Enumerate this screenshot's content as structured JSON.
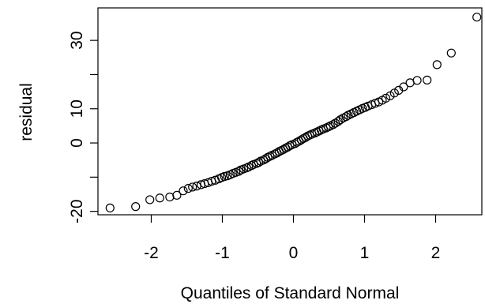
{
  "chart_data": {
    "type": "scatter",
    "title": "",
    "xlabel": "Quantiles of Standard Normal",
    "ylabel": "residual",
    "xlim": [
      -2.75,
      2.65
    ],
    "ylim": [
      -21,
      39.5
    ],
    "xticks": [
      -2,
      -1,
      0,
      1,
      2
    ],
    "xtick_labels": [
      "-2",
      "-1",
      "0",
      "1",
      "2"
    ],
    "yticks": [
      -20,
      -10,
      0,
      10,
      20,
      30
    ],
    "ytick_labels": [
      "-20",
      "0",
      "10",
      "30"
    ],
    "ytick_labels_at": [
      -20,
      0,
      10,
      30
    ],
    "grid": false,
    "marker": "open-circle",
    "series": [
      {
        "points": [
          [
            -2.58,
            -19
          ],
          [
            -2.22,
            -18.6
          ],
          [
            -2.02,
            -16.6
          ],
          [
            -1.88,
            -16.1
          ],
          [
            -1.74,
            -15.8
          ],
          [
            -1.64,
            -15.3
          ],
          [
            -1.55,
            -14
          ],
          [
            -1.48,
            -13.3
          ],
          [
            -1.42,
            -12.9
          ],
          [
            -1.36,
            -12.6
          ],
          [
            -1.3,
            -12.2
          ],
          [
            -1.25,
            -11.9
          ],
          [
            -1.2,
            -11.6
          ],
          [
            -1.15,
            -11.2
          ],
          [
            -1.1,
            -10.9
          ],
          [
            -1.05,
            -10.5
          ],
          [
            -1.01,
            -10.1
          ],
          [
            -0.97,
            -9.8
          ],
          [
            -0.93,
            -9.6
          ],
          [
            -0.89,
            -9.3
          ],
          [
            -0.85,
            -8.9
          ],
          [
            -0.81,
            -8.6
          ],
          [
            -0.77,
            -8.3
          ],
          [
            -0.74,
            -7.9
          ],
          [
            -0.7,
            -7.6
          ],
          [
            -0.66,
            -7.3
          ],
          [
            -0.63,
            -7.0
          ],
          [
            -0.59,
            -6.6
          ],
          [
            -0.56,
            -6.3
          ],
          [
            -0.52,
            -6.0
          ],
          [
            -0.49,
            -5.7
          ],
          [
            -0.46,
            -5.3
          ],
          [
            -0.42,
            -5.0
          ],
          [
            -0.39,
            -4.6
          ],
          [
            -0.36,
            -4.2
          ],
          [
            -0.33,
            -3.9
          ],
          [
            -0.3,
            -3.6
          ],
          [
            -0.26,
            -3.2
          ],
          [
            -0.23,
            -2.9
          ],
          [
            -0.2,
            -2.5
          ],
          [
            -0.17,
            -2.2
          ],
          [
            -0.14,
            -1.9
          ],
          [
            -0.11,
            -1.5
          ],
          [
            -0.08,
            -1.2
          ],
          [
            -0.05,
            -0.8
          ],
          [
            -0.02,
            -0.5
          ],
          [
            0.02,
            -0.2
          ],
          [
            0.05,
            0.2
          ],
          [
            0.08,
            0.5
          ],
          [
            0.11,
            0.9
          ],
          [
            0.14,
            1.3
          ],
          [
            0.17,
            1.6
          ],
          [
            0.2,
            2.0
          ],
          [
            0.23,
            2.3
          ],
          [
            0.26,
            2.6
          ],
          [
            0.3,
            2.9
          ],
          [
            0.33,
            3.2
          ],
          [
            0.36,
            3.5
          ],
          [
            0.39,
            3.8
          ],
          [
            0.42,
            4.1
          ],
          [
            0.46,
            4.4
          ],
          [
            0.49,
            4.7
          ],
          [
            0.52,
            5.0
          ],
          [
            0.56,
            5.4
          ],
          [
            0.59,
            5.8
          ],
          [
            0.63,
            6.3
          ],
          [
            0.66,
            6.8
          ],
          [
            0.7,
            7.3
          ],
          [
            0.74,
            7.7
          ],
          [
            0.77,
            8.1
          ],
          [
            0.81,
            8.5
          ],
          [
            0.85,
            8.9
          ],
          [
            0.89,
            9.3
          ],
          [
            0.93,
            9.7
          ],
          [
            0.97,
            10.1
          ],
          [
            1.01,
            10.4
          ],
          [
            1.05,
            10.8
          ],
          [
            1.1,
            11.2
          ],
          [
            1.15,
            11.6
          ],
          [
            1.2,
            12.0
          ],
          [
            1.25,
            12.5
          ],
          [
            1.3,
            13.1
          ],
          [
            1.36,
            13.8
          ],
          [
            1.42,
            14.6
          ],
          [
            1.48,
            15.4
          ],
          [
            1.55,
            16.4
          ],
          [
            1.64,
            17.6
          ],
          [
            1.74,
            18.3
          ],
          [
            1.88,
            18.4
          ],
          [
            2.02,
            22.9
          ],
          [
            2.22,
            26.3
          ],
          [
            2.58,
            36.8
          ]
        ]
      }
    ]
  }
}
